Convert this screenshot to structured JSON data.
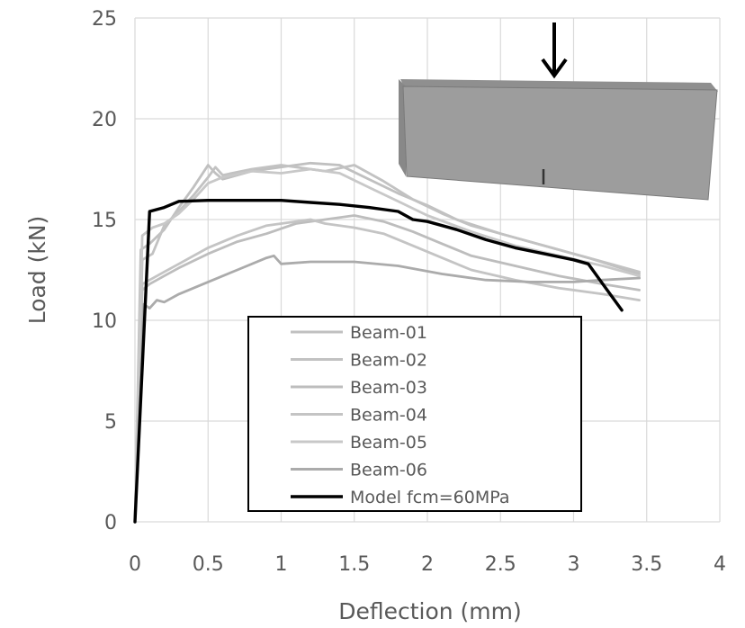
{
  "chart_data": {
    "type": "line",
    "xlabel": "Deflection (mm)",
    "ylabel": "Load (kN)",
    "xlim": [
      0,
      4
    ],
    "ylim": [
      0,
      25
    ],
    "xticks": [
      0,
      0.5,
      1,
      1.5,
      2,
      2.5,
      3,
      3.5,
      4
    ],
    "xtick_labels": [
      "0",
      "0.5",
      "1",
      "1.5",
      "2",
      "2.5",
      "3",
      "3.5",
      "4"
    ],
    "yticks": [
      0,
      5,
      10,
      15,
      20,
      25
    ],
    "ytick_labels": [
      "0",
      "5",
      "10",
      "15",
      "20",
      "25"
    ],
    "grid": true,
    "legend_position": "bottom-center",
    "series": [
      {
        "name": "Beam-01",
        "color": "#c0c0c0",
        "x": [
          0,
          0.04,
          0.1,
          0.2,
          0.3,
          0.4,
          0.5,
          0.55,
          0.6,
          0.8,
          1.0,
          1.2,
          1.4,
          1.6,
          1.8,
          2.0,
          2.2,
          2.5,
          2.8,
          3.1,
          3.45
        ],
        "y": [
          0,
          13.5,
          13.8,
          14.5,
          15.6,
          16.6,
          17.7,
          17.3,
          17.0,
          17.4,
          17.6,
          17.8,
          17.7,
          17.0,
          16.3,
          15.7,
          15.0,
          14.3,
          13.7,
          13.1,
          12.3
        ]
      },
      {
        "name": "Beam-02",
        "color": "#c2c2c2",
        "x": [
          0,
          0.05,
          0.12,
          0.2,
          0.3,
          0.4,
          0.5,
          0.55,
          0.6,
          0.8,
          1.0,
          1.3,
          1.5,
          1.7,
          1.9,
          2.1,
          2.3,
          2.6,
          2.9,
          3.2,
          3.45
        ],
        "y": [
          0,
          13.0,
          13.3,
          14.7,
          15.4,
          16.2,
          17.1,
          17.6,
          17.2,
          17.5,
          17.7,
          17.4,
          17.7,
          16.9,
          16.0,
          15.3,
          14.7,
          14.1,
          13.5,
          12.9,
          12.4
        ]
      },
      {
        "name": "Beam-03",
        "color": "#bdbdbd",
        "x": [
          0,
          0.05,
          0.1,
          0.2,
          0.3,
          0.5,
          0.7,
          0.9,
          1.1,
          1.3,
          1.5,
          1.7,
          1.9,
          2.1,
          2.3,
          2.6,
          2.9,
          3.2,
          3.45
        ],
        "y": [
          0,
          11.5,
          11.8,
          12.2,
          12.6,
          13.3,
          13.9,
          14.3,
          14.8,
          15.0,
          15.2,
          14.9,
          14.4,
          13.8,
          13.2,
          12.7,
          12.2,
          11.8,
          11.5
        ]
      },
      {
        "name": "Beam-04",
        "color": "#c4c4c4",
        "x": [
          0,
          0.05,
          0.1,
          0.2,
          0.3,
          0.5,
          0.7,
          0.9,
          1.1,
          1.2,
          1.3,
          1.5,
          1.7,
          1.9,
          2.1,
          2.3,
          2.6,
          2.9,
          3.2,
          3.45
        ],
        "y": [
          0,
          11.8,
          12.0,
          12.4,
          12.8,
          13.6,
          14.2,
          14.7,
          14.9,
          15.0,
          14.8,
          14.6,
          14.3,
          13.7,
          13.1,
          12.5,
          12.0,
          11.6,
          11.3,
          11.0
        ]
      },
      {
        "name": "Beam-05",
        "color": "#c8c8c8",
        "x": [
          0,
          0.05,
          0.12,
          0.2,
          0.3,
          0.4,
          0.5,
          0.6,
          0.8,
          1.0,
          1.2,
          1.4,
          1.6,
          1.8,
          2.0,
          2.3,
          2.6,
          2.9,
          3.2,
          3.45
        ],
        "y": [
          0,
          14.2,
          14.6,
          14.8,
          15.3,
          16.0,
          16.8,
          17.1,
          17.4,
          17.3,
          17.5,
          17.3,
          16.6,
          15.9,
          15.2,
          14.4,
          13.7,
          13.2,
          12.7,
          12.2
        ]
      },
      {
        "name": "Beam-06",
        "color": "#ababab",
        "x": [
          0,
          0.06,
          0.1,
          0.15,
          0.2,
          0.3,
          0.5,
          0.7,
          0.9,
          0.95,
          1.0,
          1.2,
          1.5,
          1.8,
          2.1,
          2.4,
          2.7,
          3.0,
          3.2,
          3.45
        ],
        "y": [
          0,
          10.8,
          10.6,
          11.0,
          10.9,
          11.3,
          11.9,
          12.5,
          13.1,
          13.2,
          12.8,
          12.9,
          12.9,
          12.7,
          12.3,
          12.0,
          11.9,
          11.9,
          12.0,
          12.1
        ]
      },
      {
        "name": "Model fcm=60MPa",
        "color": "#000000",
        "x": [
          0,
          0.1,
          0.2,
          0.3,
          0.5,
          0.7,
          0.9,
          1.0,
          1.2,
          1.4,
          1.6,
          1.8,
          1.9,
          2.0,
          2.1,
          2.2,
          2.4,
          2.6,
          2.8,
          3.0,
          3.1,
          3.2,
          3.33
        ],
        "y": [
          0,
          15.4,
          15.6,
          15.9,
          15.95,
          15.95,
          15.95,
          15.95,
          15.85,
          15.75,
          15.6,
          15.4,
          15.0,
          14.9,
          14.7,
          14.5,
          14.0,
          13.6,
          13.3,
          13.0,
          12.8,
          11.8,
          10.5
        ]
      }
    ]
  }
}
